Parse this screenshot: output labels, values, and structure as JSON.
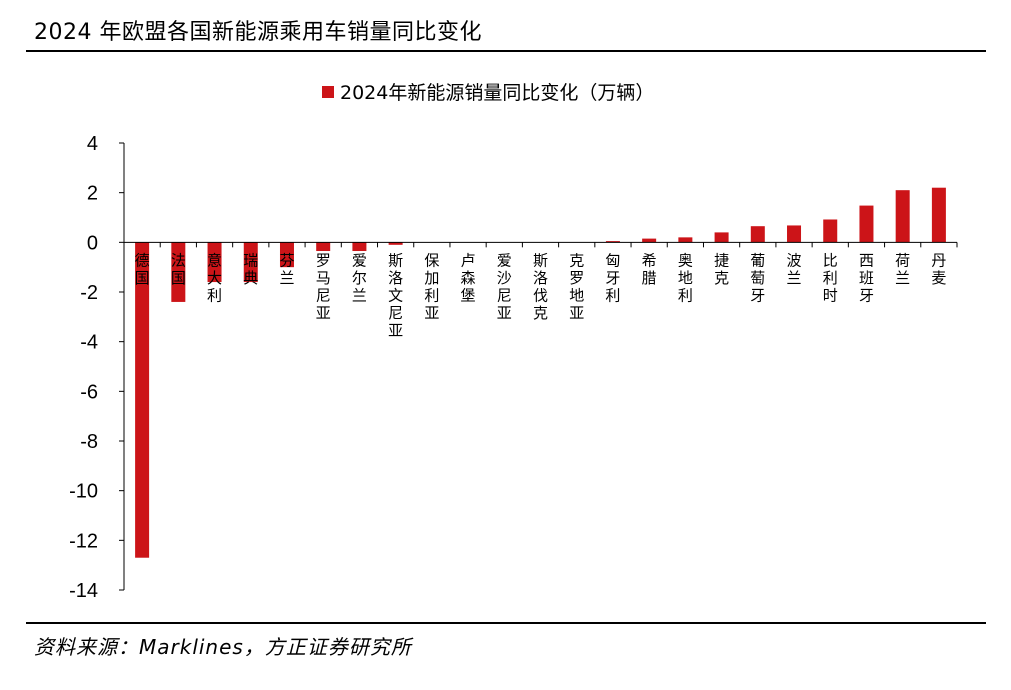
{
  "header": {
    "title": "2024 年欧盟各国新能源乘用车销量同比变化"
  },
  "footer": {
    "source": "资料来源：Marklines，方正证券研究所"
  },
  "colors": {
    "bar": "#cc1418",
    "axis": "#000000"
  },
  "chart_data": {
    "type": "bar",
    "title": "",
    "xlabel": "",
    "ylabel": "",
    "legend": {
      "position": "top",
      "entries": [
        "2024年新能源销量同比变化（万辆）"
      ]
    },
    "grid": false,
    "ylim": [
      -14,
      4
    ],
    "yticks": [
      "4",
      "2",
      "0",
      "-2",
      "-4",
      "-6",
      "-8",
      "-10",
      "-12",
      "-14"
    ],
    "categories": [
      "德国",
      "法国",
      "意大利",
      "瑞典",
      "芬兰",
      "罗马尼亚",
      "爱尔兰",
      "斯洛文尼亚",
      "保加利亚",
      "卢森堡",
      "爱沙尼亚",
      "斯洛伐克",
      "克罗地亚",
      "匈牙利",
      "希腊",
      "奥地利",
      "捷克",
      "葡萄牙",
      "波兰",
      "比利时",
      "西班牙",
      "荷兰",
      "丹麦"
    ],
    "series": [
      {
        "name": "2024年新能源销量同比变化（万辆）",
        "values": [
          -12.7,
          -2.4,
          -1.6,
          -1.6,
          -1.0,
          -0.35,
          -0.35,
          -0.1,
          0,
          0,
          0,
          0,
          0,
          0.05,
          0.15,
          0.2,
          0.4,
          0.65,
          0.68,
          0.92,
          1.48,
          2.1,
          2.2
        ]
      }
    ]
  }
}
